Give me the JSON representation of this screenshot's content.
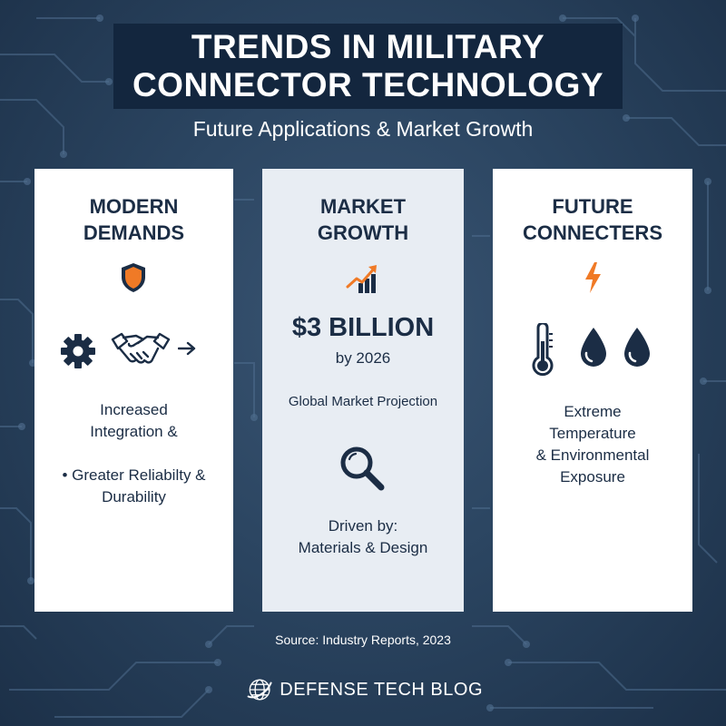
{
  "header": {
    "title_line1": "TRENDS IN MILITARY",
    "title_line2": "CONNECTOR TECHNOLOGY",
    "subtitle": "Future Applications & Market Growth"
  },
  "cards": {
    "modern": {
      "heading_line1": "MODERN",
      "heading_line2": "DEMANDS",
      "point1_line1": "Increased",
      "point1_line2": "Integration &",
      "point2_line1": "• Greater Reliabilty &",
      "point2_line2": "Durability",
      "icons": [
        "shield-icon",
        "gear-icon",
        "handshake-icon",
        "arrow-right-icon"
      ]
    },
    "market": {
      "heading_line1": "MARKET",
      "heading_line2": "GROWTH",
      "value": "$3 BILLION",
      "value_sub": "by 2026",
      "projection": "Global Market Projection",
      "driven_line1": "Driven by:",
      "driven_line2": "Materials & Design",
      "icons": [
        "growth-chart-icon",
        "magnifier-icon"
      ]
    },
    "future": {
      "heading_line1": "FUTURE",
      "heading_line2": "CONNECTERS",
      "text_line1": "Extreme",
      "text_line2": "Temperature",
      "text_line3": "& Environmental",
      "text_line4": "Exposure",
      "icons": [
        "lightning-icon",
        "thermometer-icon",
        "water-drop-icon",
        "water-drop-icon"
      ]
    }
  },
  "footer": {
    "source": "Source: Industry Reports, 2023",
    "brand": "DEFENSE TECH BLOG"
  },
  "colors": {
    "background": "#2b4561",
    "title_box": "#13263e",
    "text_dark": "#1b2d45",
    "accent_orange": "#f07a26",
    "card_mid": "#e8edf3"
  }
}
